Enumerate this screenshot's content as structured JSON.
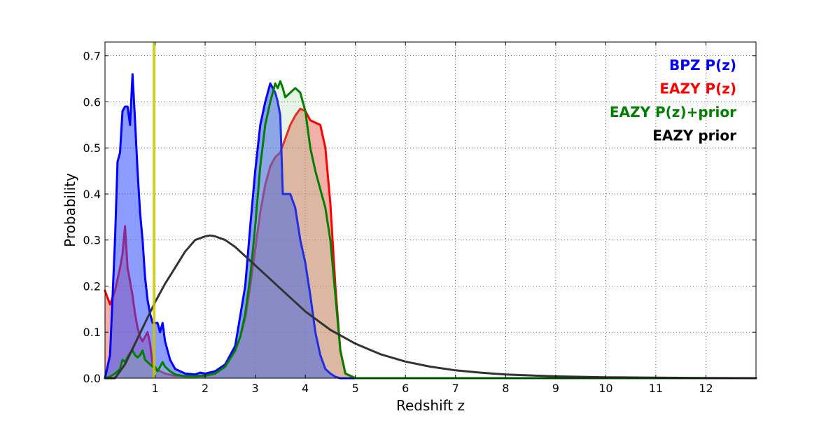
{
  "chart_data": {
    "type": "area",
    "title": "",
    "xlabel": "Redshift z",
    "ylabel": "Probability",
    "xlim": [
      0,
      13
    ],
    "ylim": [
      0,
      0.73
    ],
    "grid": true,
    "legend_position": "top-right",
    "x_ticks": [
      1,
      2,
      3,
      4,
      5,
      6,
      7,
      8,
      9,
      10,
      11,
      12
    ],
    "y_ticks": [
      0.0,
      0.1,
      0.2,
      0.3,
      0.4,
      0.5,
      0.6,
      0.7
    ],
    "marker_line": {
      "x": 0.98,
      "color": "#c8c800"
    },
    "series": [
      {
        "name": "EAZY P(z)",
        "color": "#ff0000",
        "fill": "#e8705f",
        "fill_opacity": 0.55,
        "x": [
          0,
          0.1,
          0.2,
          0.3,
          0.35,
          0.4,
          0.45,
          0.5,
          0.55,
          0.6,
          0.65,
          0.7,
          0.75,
          0.8,
          0.85,
          0.9,
          0.95,
          1.0,
          1.1,
          1.2,
          1.4,
          1.6,
          1.8,
          2.0,
          2.2,
          2.4,
          2.6,
          2.7,
          2.8,
          2.9,
          3.0,
          3.1,
          3.2,
          3.3,
          3.4,
          3.5,
          3.6,
          3.7,
          3.8,
          3.9,
          4.0,
          4.1,
          4.2,
          4.3,
          4.4,
          4.5,
          4.6,
          4.7,
          4.8,
          5.0,
          6.0,
          13.0
        ],
        "y": [
          0.19,
          0.16,
          0.19,
          0.24,
          0.27,
          0.33,
          0.24,
          0.21,
          0.18,
          0.14,
          0.11,
          0.09,
          0.08,
          0.09,
          0.1,
          0.075,
          0.03,
          0.02,
          0.015,
          0.01,
          0.005,
          0.005,
          0.005,
          0.006,
          0.01,
          0.03,
          0.06,
          0.09,
          0.13,
          0.2,
          0.28,
          0.36,
          0.42,
          0.46,
          0.48,
          0.49,
          0.52,
          0.55,
          0.57,
          0.585,
          0.58,
          0.56,
          0.555,
          0.55,
          0.5,
          0.38,
          0.2,
          0.06,
          0.01,
          0.0,
          0.0,
          0.0
        ]
      },
      {
        "name": "BPZ P(z)",
        "color": "#0000ff",
        "fill": "#2f4bff",
        "fill_opacity": 0.55,
        "x": [
          0,
          0.1,
          0.2,
          0.25,
          0.3,
          0.35,
          0.4,
          0.45,
          0.5,
          0.55,
          0.6,
          0.65,
          0.7,
          0.75,
          0.8,
          0.85,
          0.9,
          0.95,
          1.0,
          1.05,
          1.1,
          1.15,
          1.2,
          1.3,
          1.4,
          1.6,
          1.8,
          1.9,
          2.0,
          2.2,
          2.4,
          2.6,
          2.8,
          2.9,
          3.0,
          3.1,
          3.2,
          3.3,
          3.4,
          3.45,
          3.5,
          3.55,
          3.6,
          3.7,
          3.8,
          3.9,
          4.0,
          4.1,
          4.2,
          4.3,
          4.4,
          4.5,
          4.6,
          4.7,
          5.0,
          13.0
        ],
        "y": [
          0.0,
          0.05,
          0.3,
          0.47,
          0.49,
          0.58,
          0.59,
          0.59,
          0.55,
          0.66,
          0.56,
          0.45,
          0.36,
          0.3,
          0.22,
          0.17,
          0.14,
          0.12,
          0.12,
          0.12,
          0.1,
          0.12,
          0.08,
          0.04,
          0.02,
          0.01,
          0.008,
          0.012,
          0.01,
          0.015,
          0.03,
          0.07,
          0.2,
          0.33,
          0.45,
          0.55,
          0.6,
          0.64,
          0.62,
          0.6,
          0.57,
          0.4,
          0.4,
          0.4,
          0.37,
          0.3,
          0.25,
          0.18,
          0.1,
          0.05,
          0.02,
          0.01,
          0.003,
          0.0,
          0.0,
          0.0
        ]
      },
      {
        "name": "EAZY P(z)+prior",
        "color": "#008000",
        "fill": "#8fd08f",
        "fill_opacity": 0.22,
        "x": [
          0,
          0.1,
          0.2,
          0.3,
          0.35,
          0.4,
          0.45,
          0.5,
          0.55,
          0.6,
          0.65,
          0.7,
          0.75,
          0.8,
          0.85,
          0.9,
          0.95,
          1.0,
          1.05,
          1.1,
          1.15,
          1.2,
          1.3,
          1.4,
          1.6,
          1.8,
          2.0,
          2.2,
          2.4,
          2.6,
          2.7,
          2.8,
          2.9,
          3.0,
          3.1,
          3.2,
          3.3,
          3.4,
          3.45,
          3.5,
          3.55,
          3.6,
          3.7,
          3.8,
          3.9,
          4.0,
          4.1,
          4.2,
          4.3,
          4.4,
          4.5,
          4.6,
          4.7,
          4.8,
          5.0,
          13.0
        ],
        "y": [
          0.0,
          0.003,
          0.01,
          0.02,
          0.04,
          0.035,
          0.045,
          0.055,
          0.06,
          0.05,
          0.045,
          0.05,
          0.06,
          0.04,
          0.035,
          0.03,
          0.025,
          0.025,
          0.015,
          0.025,
          0.035,
          0.025,
          0.015,
          0.008,
          0.004,
          0.004,
          0.005,
          0.01,
          0.025,
          0.06,
          0.09,
          0.14,
          0.22,
          0.33,
          0.46,
          0.55,
          0.6,
          0.64,
          0.63,
          0.645,
          0.63,
          0.61,
          0.62,
          0.63,
          0.62,
          0.58,
          0.5,
          0.45,
          0.41,
          0.37,
          0.3,
          0.18,
          0.06,
          0.01,
          0.0,
          0.0
        ]
      },
      {
        "name": "EAZY prior",
        "color": "#333333",
        "fill": "",
        "fill_opacity": 0,
        "x": [
          0,
          0.2,
          0.4,
          0.6,
          0.8,
          1.0,
          1.2,
          1.4,
          1.6,
          1.8,
          2.0,
          2.1,
          2.2,
          2.4,
          2.6,
          2.8,
          3.0,
          3.5,
          4.0,
          4.5,
          5.0,
          5.5,
          6.0,
          6.5,
          7.0,
          7.5,
          8.0,
          9.0,
          10.0,
          11.0,
          12.0,
          13.0
        ],
        "y": [
          0.0,
          0.0,
          0.03,
          0.075,
          0.12,
          0.165,
          0.205,
          0.24,
          0.275,
          0.3,
          0.308,
          0.31,
          0.308,
          0.3,
          0.285,
          0.265,
          0.245,
          0.195,
          0.145,
          0.105,
          0.075,
          0.052,
          0.036,
          0.025,
          0.017,
          0.012,
          0.008,
          0.004,
          0.002,
          0.001,
          0.0005,
          0.0
        ]
      }
    ],
    "legend_order": [
      "BPZ P(z)",
      "EAZY P(z)",
      "EAZY P(z)+prior",
      "EAZY prior"
    ]
  }
}
